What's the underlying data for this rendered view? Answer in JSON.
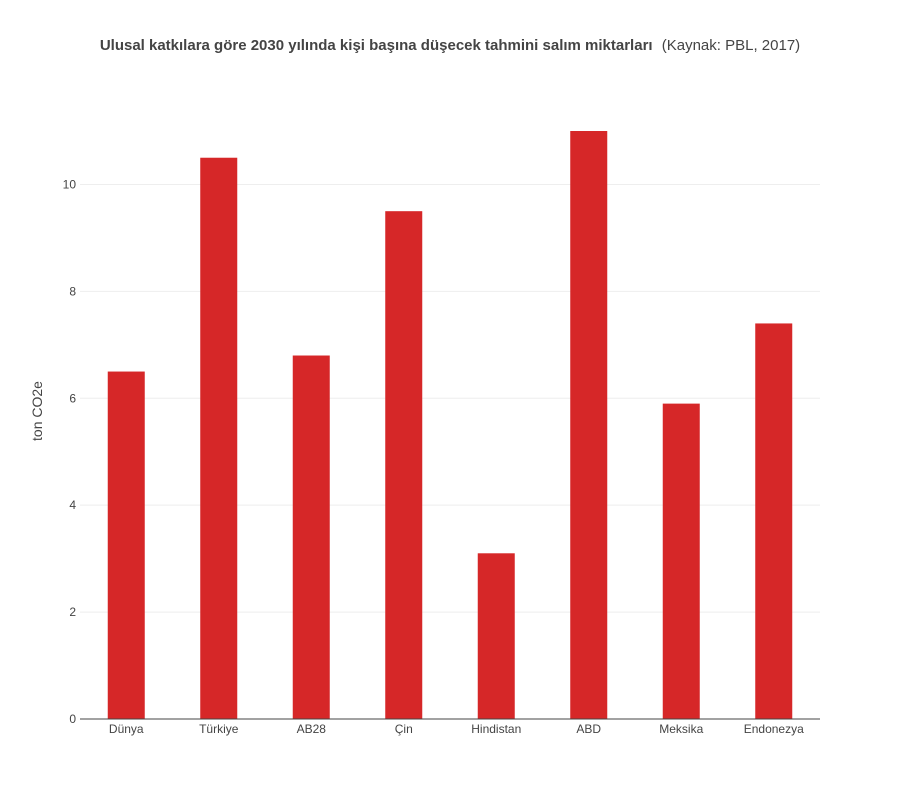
{
  "chart_data": {
    "type": "bar",
    "title": "Ulusal katkılara göre 2030 yılında kişi başına düşecek tahmini salım miktarları",
    "title_suffix": "(Kaynak: PBL, 2017)",
    "xlabel": "",
    "ylabel": "ton CO2e",
    "categories": [
      "Dünya",
      "Türkiye",
      "AB28",
      "Çin",
      "Hindistan",
      "ABD",
      "Meksika",
      "Endonezya"
    ],
    "values": [
      6.5,
      10.5,
      6.8,
      9.5,
      3.1,
      11.0,
      5.9,
      7.4
    ],
    "ylim": [
      0,
      11.58
    ],
    "yticks": [
      0,
      2,
      4,
      6,
      8,
      10
    ],
    "grid": true,
    "bar_color": "#d62728",
    "legend": "none"
  }
}
